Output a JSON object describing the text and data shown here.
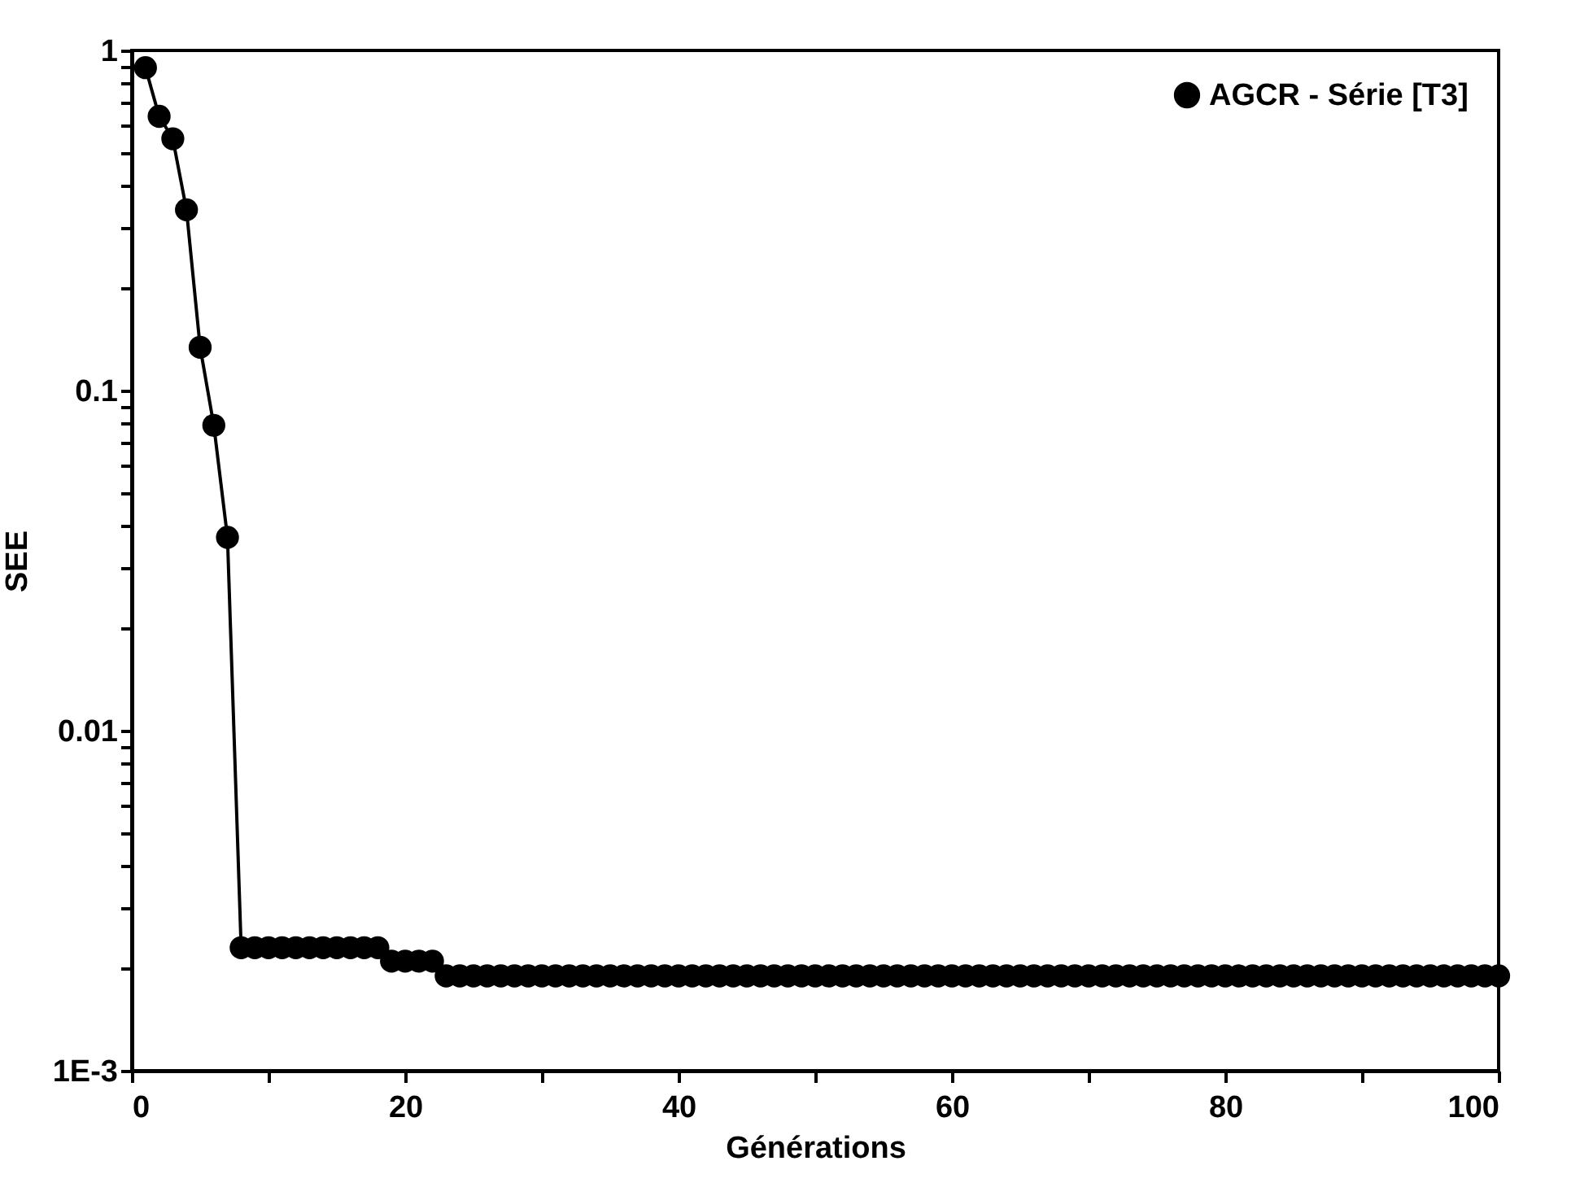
{
  "chart_data": {
    "type": "line",
    "xlabel": "Générations",
    "ylabel": "SEE",
    "log": "y",
    "x": [
      1,
      2,
      3,
      4,
      5,
      6,
      7,
      8,
      9,
      10,
      11,
      12,
      13,
      14,
      15,
      16,
      17,
      18,
      19,
      20,
      21,
      22,
      23,
      24,
      25,
      26,
      27,
      28,
      29,
      30,
      31,
      32,
      33,
      34,
      35,
      36,
      37,
      38,
      39,
      40,
      41,
      42,
      43,
      44,
      45,
      46,
      47,
      48,
      49,
      50,
      51,
      52,
      53,
      54,
      55,
      56,
      57,
      58,
      59,
      60,
      61,
      62,
      63,
      64,
      65,
      66,
      67,
      68,
      69,
      70,
      71,
      72,
      73,
      74,
      75,
      76,
      77,
      78,
      79,
      80,
      81,
      82,
      83,
      84,
      85,
      86,
      87,
      88,
      89,
      90,
      91,
      92,
      93,
      94,
      95,
      96,
      97,
      98,
      99,
      100
    ],
    "series": [
      {
        "name": "AGCR - Série [T3]",
        "color": "#000000",
        "values": [
          0.89,
          0.64,
          0.55,
          0.34,
          0.134,
          0.079,
          0.037,
          0.0023,
          0.0023,
          0.0023,
          0.0023,
          0.0023,
          0.0023,
          0.0023,
          0.0023,
          0.0023,
          0.0023,
          0.0023,
          0.0021,
          0.0021,
          0.0021,
          0.0021,
          0.0019,
          0.0019,
          0.0019,
          0.0019,
          0.0019,
          0.0019,
          0.0019,
          0.0019,
          0.0019,
          0.0019,
          0.0019,
          0.0019,
          0.0019,
          0.0019,
          0.0019,
          0.0019,
          0.0019,
          0.0019,
          0.0019,
          0.0019,
          0.0019,
          0.0019,
          0.0019,
          0.0019,
          0.0019,
          0.0019,
          0.0019,
          0.0019,
          0.0019,
          0.0019,
          0.0019,
          0.0019,
          0.0019,
          0.0019,
          0.0019,
          0.0019,
          0.0019,
          0.0019,
          0.0019,
          0.0019,
          0.0019,
          0.0019,
          0.0019,
          0.0019,
          0.0019,
          0.0019,
          0.0019,
          0.0019,
          0.0019,
          0.0019,
          0.0019,
          0.0019,
          0.0019,
          0.0019,
          0.0019,
          0.0019,
          0.0019,
          0.0019,
          0.0019,
          0.0019,
          0.0019,
          0.0019,
          0.0019,
          0.0019,
          0.0019,
          0.0019,
          0.0019,
          0.0019,
          0.0019,
          0.0019,
          0.0019,
          0.0019,
          0.0019,
          0.0019,
          0.0019,
          0.0019,
          0.0019,
          0.0019
        ]
      }
    ],
    "xlim": [
      0,
      100
    ],
    "xticks": [
      0,
      {
        "value": 10,
        "label": null
      },
      20,
      {
        "value": 30,
        "label": null
      },
      40,
      {
        "value": 50,
        "label": null
      },
      60,
      {
        "value": 70,
        "label": null
      },
      80,
      {
        "value": 90,
        "label": null
      },
      100
    ],
    "ylim": [
      0.001,
      1
    ],
    "yticks": [
      {
        "value": 0.001,
        "label": "1E-3"
      },
      {
        "value": 0.002,
        "label": null
      },
      {
        "value": 0.003,
        "label": null
      },
      {
        "value": 0.004,
        "label": null
      },
      {
        "value": 0.005,
        "label": null
      },
      {
        "value": 0.006,
        "label": null
      },
      {
        "value": 0.007,
        "label": null
      },
      {
        "value": 0.008,
        "label": null
      },
      {
        "value": 0.009,
        "label": null
      },
      0.01,
      {
        "value": 0.02,
        "label": null
      },
      {
        "value": 0.03,
        "label": null
      },
      {
        "value": 0.04,
        "label": null
      },
      {
        "value": 0.05,
        "label": null
      },
      {
        "value": 0.06,
        "label": null
      },
      {
        "value": 0.07,
        "label": null
      },
      {
        "value": 0.08,
        "label": null
      },
      {
        "value": 0.09,
        "label": null
      },
      0.1,
      {
        "value": 0.2,
        "label": null
      },
      {
        "value": 0.3,
        "label": null
      },
      {
        "value": 0.4,
        "label": null
      },
      {
        "value": 0.5,
        "label": null
      },
      {
        "value": 0.6,
        "label": null
      },
      {
        "value": 0.7,
        "label": null
      },
      {
        "value": 0.8,
        "label": null
      },
      {
        "value": 0.9,
        "label": null
      },
      1
    ],
    "grid": false,
    "legend": "top right",
    "marker": "circle",
    "line_style": "solid"
  }
}
